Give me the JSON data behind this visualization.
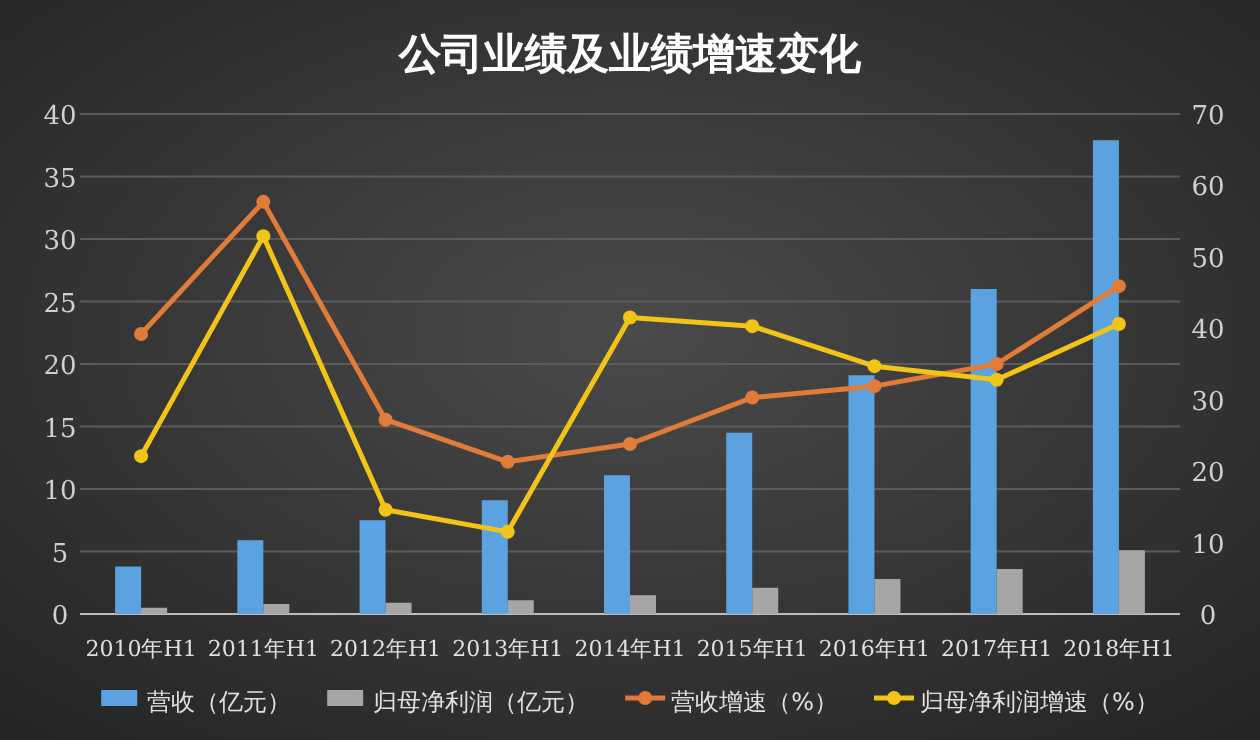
{
  "chart_data": {
    "type": "bar",
    "title": "公司业绩及业绩增速变化",
    "categories": [
      "2010年H1",
      "2011年H1",
      "2012年H1",
      "2013年H1",
      "2014年H1",
      "2015年H1",
      "2016年H1",
      "2017年H1",
      "2018年H1"
    ],
    "series": [
      {
        "name": "营收（亿元）",
        "color": "#5ba3e0",
        "values": [
          3.8,
          5.9,
          7.5,
          9.1,
          11.1,
          14.5,
          19.1,
          26.0,
          37.9
        ]
      },
      {
        "name": "归母净利润（亿元）",
        "color": "#a6a6a6",
        "values": [
          0.5,
          0.8,
          0.9,
          1.1,
          1.5,
          2.1,
          2.8,
          3.6,
          5.1
        ]
      },
      {
        "name": "营收增速（%）",
        "type": "line",
        "axis": "y2",
        "marker": "circle",
        "color": "#e07b39",
        "values": [
          39.2,
          57.7,
          27.2,
          21.3,
          23.8,
          30.3,
          31.9,
          35.0,
          45.9
        ]
      },
      {
        "name": "归母净利润增速（%）",
        "type": "line",
        "axis": "y2",
        "marker": "circle",
        "color": "#f2c418",
        "values": [
          22.1,
          52.9,
          14.6,
          11.5,
          41.5,
          40.3,
          34.7,
          32.8,
          40.6
        ]
      }
    ],
    "ylim": [
      0,
      40
    ],
    "yticks": [
      0,
      5,
      10,
      15,
      20,
      25,
      30,
      35,
      40
    ],
    "y2lim": [
      0,
      70
    ],
    "y2ticks": [
      0,
      10,
      20,
      30,
      40,
      50,
      60,
      70
    ],
    "grid": "y",
    "legend": "bottom"
  }
}
